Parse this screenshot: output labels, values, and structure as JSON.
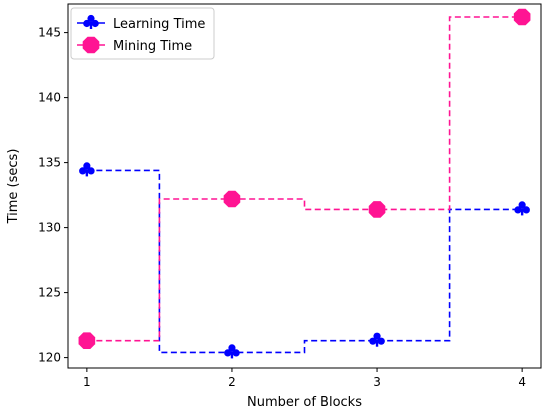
{
  "chart_data": {
    "type": "line",
    "xlabel": "Number of Blocks",
    "ylabel": "Time (secs)",
    "xlim": [
      0.87,
      4.13
    ],
    "ylim": [
      119.2,
      147.2
    ],
    "xticks": [
      1,
      2,
      3,
      4
    ],
    "yticks": [
      120,
      125,
      130,
      135,
      140,
      145
    ],
    "grid": false,
    "legend_position": "top-left",
    "step_where": "mid",
    "series": [
      {
        "name": "Learning Time",
        "color": "#0000ff",
        "marker": "club",
        "linestyle": "dashed",
        "x": [
          1,
          2,
          3,
          4
        ],
        "y": [
          134.4,
          120.4,
          121.3,
          131.4
        ]
      },
      {
        "name": "Mining Time",
        "color": "#ff1493",
        "marker": "octagon",
        "linestyle": "dashed",
        "x": [
          1,
          2,
          3,
          4
        ],
        "y": [
          121.3,
          132.2,
          131.4,
          146.2
        ]
      }
    ]
  }
}
